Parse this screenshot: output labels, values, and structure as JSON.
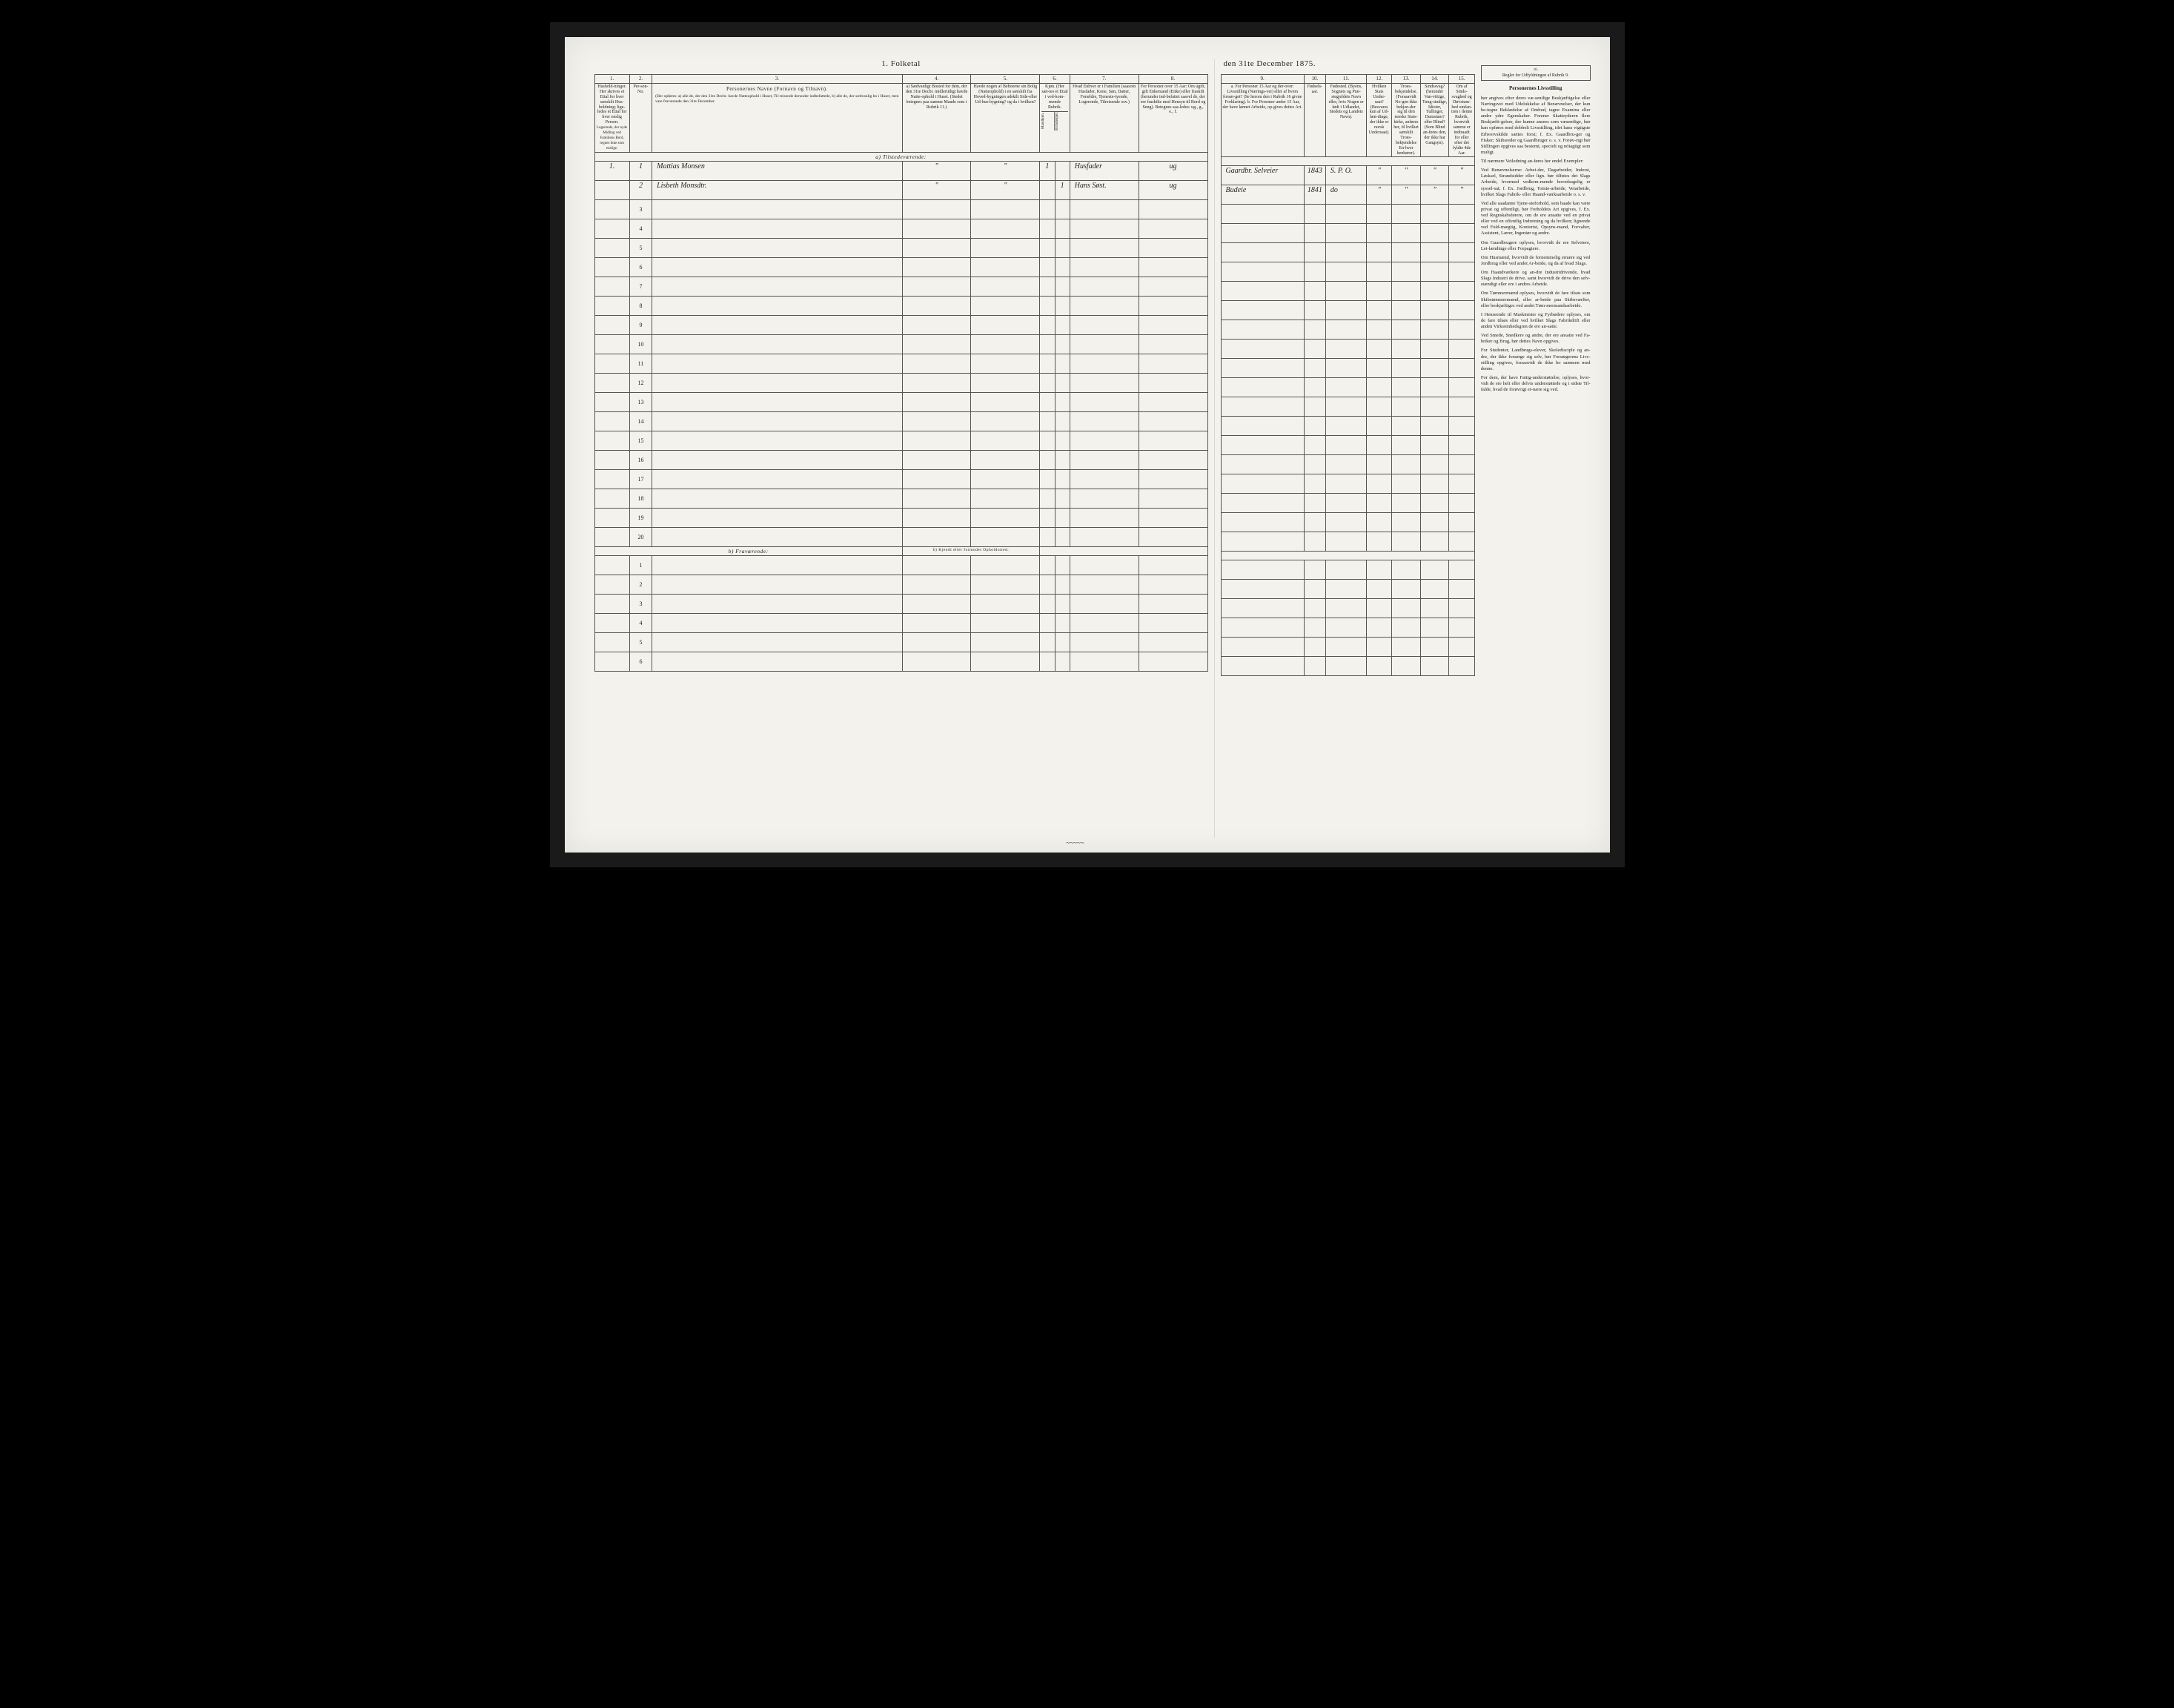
{
  "page": {
    "title_left": "1. Folketal",
    "title_right": "den 31te December 1875.",
    "scribble": "~~~~~"
  },
  "left_columns": {
    "nums": [
      "1.",
      "2.",
      "3.",
      "4.",
      "5.",
      "6.",
      "7.",
      "8."
    ],
    "col1": "Hushold-ninger. Her skrives et Ettal for hver særskilt Hus-holdning; lige-ledes et Ettal for hver enslig Person.",
    "col1_note": "Logerende, der nyde Midling ved Familiens Bord, regnes ikke som enslige.",
    "col2": "Per-son-No.",
    "col3_head": "Personernes Navne (Fornavn og Tilnavn).",
    "col3_sub": "(Her opføres: a) alle de, der den 31te Decbr. havde Natteophold i Huset, Til-reisende derunder indbefattede, b) alle de, der sædvanlig bo i Huset, men vare fraværende den 31te December.",
    "col4": "a) Sædvanligt Bosted for dem, der den 31te Decbr. midlertidigt havde Natte-ophold i Huset. (Stedet betegnes paa samme Maade som i Rubrik 11.)",
    "col5": "Havde nogen af Beboerne sin Bolig (Natteophold) i en særskilt fra Hoved-bygningen adskilt Side-eller Ud-hus-bygning? og da i hvilken?",
    "col6": "Kjøn. (Her sæt-tes et Ettal i ved-kom-mende Rubrik.",
    "col6a": "Mandkjøn.",
    "col6b": "Kvindekjøn.",
    "col7": "Hvad Enhver er i Familien (saasom Husfader, Kone, Søn, Datter, Forældre, Tjeneste-tyende, Logerende, Tilreisende osv.)",
    "col8": "For Personer over 15 Aar: Om ugift, gift Enkemand (Enke) eller fraskilt (herunder ind-befattet saavel de, der ere fraskilte med Hensyn til Bord og Seng). Betegnes saa-ledes: ug., g., e., f."
  },
  "right_columns": {
    "nums": [
      "9.",
      "10.",
      "11.",
      "12.",
      "13.",
      "14.",
      "15."
    ],
    "col9": "a. For Personer 15 Aar og der-over: Livsstilling (Nærings-vei) eller af hvem forsør-get? (Se herom den i Rubrik 16 givne Forklaring). b. For Personer under 15 Aar, der have lønnet Arbeide, op-gives dettes Art.",
    "col10": "Fødsels-aar.",
    "col11": "Fødested. (Byens, Sognets og Præ-stegjeldets Navn eller, hvis Nogen er født i Udlandet, Stedets og Landets Navn).",
    "col12": "Hvilken Stats Under-saat? (Besvares kun af Ud-læn-dinge, der ikke er norsk Undersaat).",
    "col13": "Troes-bekjendelse. (Forsaavidt No-gen ikke bekjen-der sig til den norske Stats-kirke, anføres her, til hvilket særskilt Troes-bekjendelse En-hver henhører).",
    "col14": "Sindssvag? (herunder Van-vittige, Tung-sindige, Idioter, Tullinger, Dumstum? eller Blind? (Som Blind an-føres den, der ikke har Gangsyn).",
    "col15": "Om af Sinds-svaghed og Døvstum-hed omfan-tren i denne Rubrik, hvorvidt samme er indtraadt for eller efter det fyldte 4de Aar.",
    "col16_head": "Regler for Udfyldningen af Rubrik 9."
  },
  "sections": {
    "present": "a) Tilstedeværende:",
    "absent": "b) Fraværende:",
    "absent_note": "b) Kjendt eller formodet Opholdssted."
  },
  "rows": [
    {
      "hh": "1.",
      "pno": "1",
      "name": "Mattias Monsen",
      "c4": "\"",
      "c5": "\"",
      "m": "1",
      "k": "",
      "rel": "Husfader",
      "ms": "ug",
      "occ": "Gaardbr. Selveier",
      "born": "1843",
      "place": "S. P. O.",
      "c12": "\"",
      "c13": "\"",
      "c14": "\"",
      "c15": "\""
    },
    {
      "hh": "",
      "pno": "2",
      "name": "Lisbeth Monsdtr.",
      "c4": "\"",
      "c5": "\"",
      "m": "",
      "k": "1",
      "rel": "Hans Søst.",
      "ms": "ug",
      "occ": "Budeie",
      "born": "1841",
      "place": "do",
      "c12": "\"",
      "c13": "\"",
      "c14": "\"",
      "c15": "\""
    }
  ],
  "blank_present_from": 3,
  "blank_present_to": 20,
  "blank_absent_from": 1,
  "blank_absent_to": 6,
  "instructions": {
    "head": "Personernes Livsstilling",
    "paras": [
      "bør angives efter deres væ-sentlige Beskjæftigelse eller Næringsvei med Udelukkelse af Benævnelser, der kun be-tegne Beklædelse af Ombud, tagne Examina eller andre ydre Egenskaber. Forener Skatteyderen flere Beskjæfti-gelser, der kunne ansees som væsentlige, bør han opføres med dobbelt Livsstilling, idet hans vigtigste Erhvervskilde sættes forst; f. Ex. Gaardbru-ger og Fisker; Skibsreder og Gaardbruger o. s. v. Forøv-rigt bør Stillingen opgives saa bestemt, specielt og nöiagtigt som muligt.",
      "Til nærmere Veiledning an-føres her endel Exempler:",
      "Ved Benævnelserne: Arbei-der, Dagarbeider, Inderst, Løskarl, Strandsidder eller lign. bør tilføies det Slags Arbeide, hvormed vedkom-mende hovedsagelig er syssel-sat; f. Ex. Jordbrug, Tomte-arbeide, Veiarbeide, hvilket Slags Fabrik- eller Haand-værksarbeide o. s. v.",
      "Ved alle saadanne Tjene-steforhold, som baade kan være privat og offentligt, bør Forholdets Art opgives, f. Ex. ved Regnskabsførere, om de ere ansatte ved en privat eller ved en offentlig Indretning og da hvilken; lignende ved Fuld-mægtig, Kontorist, Opsyns-mand, Forvalter, Assistent, Lærer, Ingeniør og andre.",
      "Om Gaardbrugere oplyses, hvorvidt de ere Selveiere, Lei-lændinge eller Forpagtere.",
      "Om Husmænd, hvorvidt de fornemmelig ernære sig ved Jordbrug eller ved andet Ar-beide, og da af hvad Slags.",
      "Om Haandværkere og an-dre Industridrivende, hvad Slags Industri de drive, samt hvorvidt de drive den selv-stændigt eller ere i andres Arbeide.",
      "Om Tømmermænd oplyses, hvorvidt de fare tilsøs som Skibstømmermænd, eller ar-beide paa Skibsværfter, eller beskjæftiges ved andet Tøm-mermandsarbeide.",
      "I Henseende til Maskinister og Fyrbødere oplyses, om de fare tilsøs eller ved hvilket Slags Fabrikdrift eller anden Virksomhedsgren de ere an-satte.",
      "Ved Smede, Snedkere og andre, der ere ansatte ved Fa-briker og Brug, bør dettes Navn opgives.",
      "For Studenter, Landbrugs-elever, Skoledisciple og an-dre, der ikke forsørge sig selv, bør Forsørgerens Livs-stilling opgives, forsaavidt de ikke bo sammen med denne.",
      "For dem, der have Fattig-understøttelse, oplyses, hvor-vidt de ere helt eller delvis understøttede og i sidste Til-falde, hvad de forøvrigt er-nære sig ved."
    ]
  },
  "style": {
    "paper_bg": "#f4f2ed",
    "border_color": "#555555",
    "text_color": "#222222",
    "outer_bg": "#000000"
  }
}
